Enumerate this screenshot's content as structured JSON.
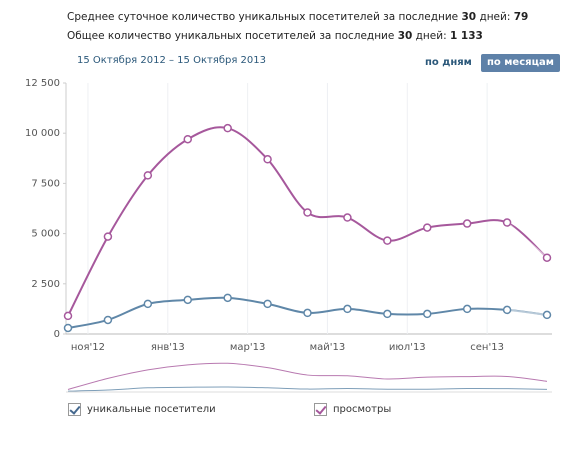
{
  "header": {
    "line1": {
      "text": "Среднее суточное количество уникальных посетителей за последние",
      "days": "30",
      "unit": "дней:",
      "value": "79"
    },
    "line2": {
      "text": "Общее количество уникальных посетителей за последние",
      "days": "30",
      "unit": "дней:",
      "value": "1 133"
    },
    "range": "15 Октября 2012 – 15 Октября 2013",
    "buttons": [
      "по дням",
      "по месяцам"
    ]
  },
  "chart_data": {
    "type": "line",
    "x": [
      0,
      1,
      2,
      3,
      4,
      5,
      6,
      7,
      8,
      9,
      10,
      11,
      12
    ],
    "xlim": [
      0,
      12
    ],
    "xticks": [
      {
        "value": 0.5,
        "label": "ноя'12"
      },
      {
        "value": 2.5,
        "label": "янв'13"
      },
      {
        "value": 4.5,
        "label": "мар'13"
      },
      {
        "value": 6.5,
        "label": "май'13"
      },
      {
        "value": 8.5,
        "label": "июл'13"
      },
      {
        "value": 10.5,
        "label": "сен'13"
      }
    ],
    "ylim": [
      0,
      12500
    ],
    "yticks": [
      0,
      {
        "value": 2500,
        "label": "2 500"
      },
      {
        "value": 5000,
        "label": "5 000"
      },
      {
        "value": 7500,
        "label": "7 500"
      },
      {
        "value": 10000,
        "label": "10 000"
      },
      {
        "value": 12500,
        "label": "12 500"
      }
    ],
    "grid": true,
    "series": [
      {
        "name": "уникальные посетители",
        "color": "#5f87a8",
        "values": [
          300,
          700,
          1500,
          1700,
          1800,
          1500,
          1050,
          1250,
          1000,
          1000,
          1250,
          1200,
          950
        ]
      },
      {
        "name": "просмотры",
        "color": "#a6589c",
        "values": [
          900,
          4850,
          7900,
          9700,
          10250,
          8700,
          6050,
          5800,
          4650,
          5300,
          5500,
          5550,
          3800
        ]
      }
    ]
  }
}
